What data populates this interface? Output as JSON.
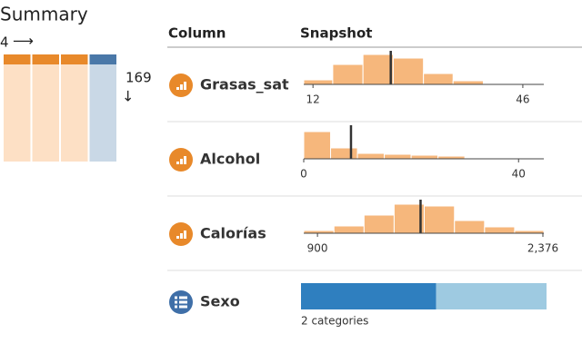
{
  "summary": {
    "title": "Summary",
    "columns": 4,
    "rows": 169,
    "column_colors": [
      [
        "#e8892a",
        "#fde0c5"
      ],
      [
        "#e8892a",
        "#fde0c5"
      ],
      [
        "#e8892a",
        "#fde0c5"
      ],
      [
        "#4a78a8",
        "#c9d8e6"
      ]
    ]
  },
  "table": {
    "headers": [
      "Column",
      "Snapshot"
    ],
    "rows": [
      {
        "name": "Grasas_sat",
        "type": "histogram",
        "color": "#f6b77c",
        "icon_color": "#e8892a",
        "bins": [
          10.5,
          15.2,
          20.1,
          25.0,
          29.9,
          34.7,
          39.6,
          44.5,
          49.4
        ],
        "counts": [
          5,
          22,
          33,
          29,
          12,
          4,
          1,
          1
        ],
        "median": 24.6,
        "xlim": [
          10.5,
          49.4
        ],
        "ylim": [
          0,
          36
        ],
        "xticks": [
          12,
          46
        ]
      },
      {
        "name": "Alcohol",
        "type": "histogram",
        "color": "#f6b77c",
        "icon_color": "#e8892a",
        "bins": [
          0,
          5,
          10,
          15,
          20,
          25,
          30,
          35,
          40
        ],
        "counts": [
          30,
          12,
          6,
          5,
          4,
          3,
          1,
          1
        ],
        "median": 8.8,
        "xlim": [
          0,
          44.7
        ],
        "ylim": [
          0,
          36
        ],
        "xticks": [
          0,
          40
        ]
      },
      {
        "name": "Calorías",
        "type": "histogram",
        "color": "#f6b77c",
        "icon_color": "#e8892a",
        "bins": [
          810,
          1008,
          1205,
          1402,
          1599,
          1797,
          1994,
          2191,
          2382
        ],
        "counts": [
          3,
          8,
          20,
          32,
          30,
          14,
          7,
          3
        ],
        "median": 1575,
        "xlim": [
          810,
          2382
        ],
        "ylim": [
          0,
          36
        ],
        "xticks": [
          900,
          {
            "value": 2376,
            "label": "2,376"
          }
        ]
      },
      {
        "name": "Sexo",
        "type": "categories",
        "icon_color": "#3f6fa8",
        "values": [
          93,
          76
        ],
        "colors": [
          "#2f7fbf",
          "#9ecae1"
        ],
        "label": "2 categories"
      }
    ]
  }
}
